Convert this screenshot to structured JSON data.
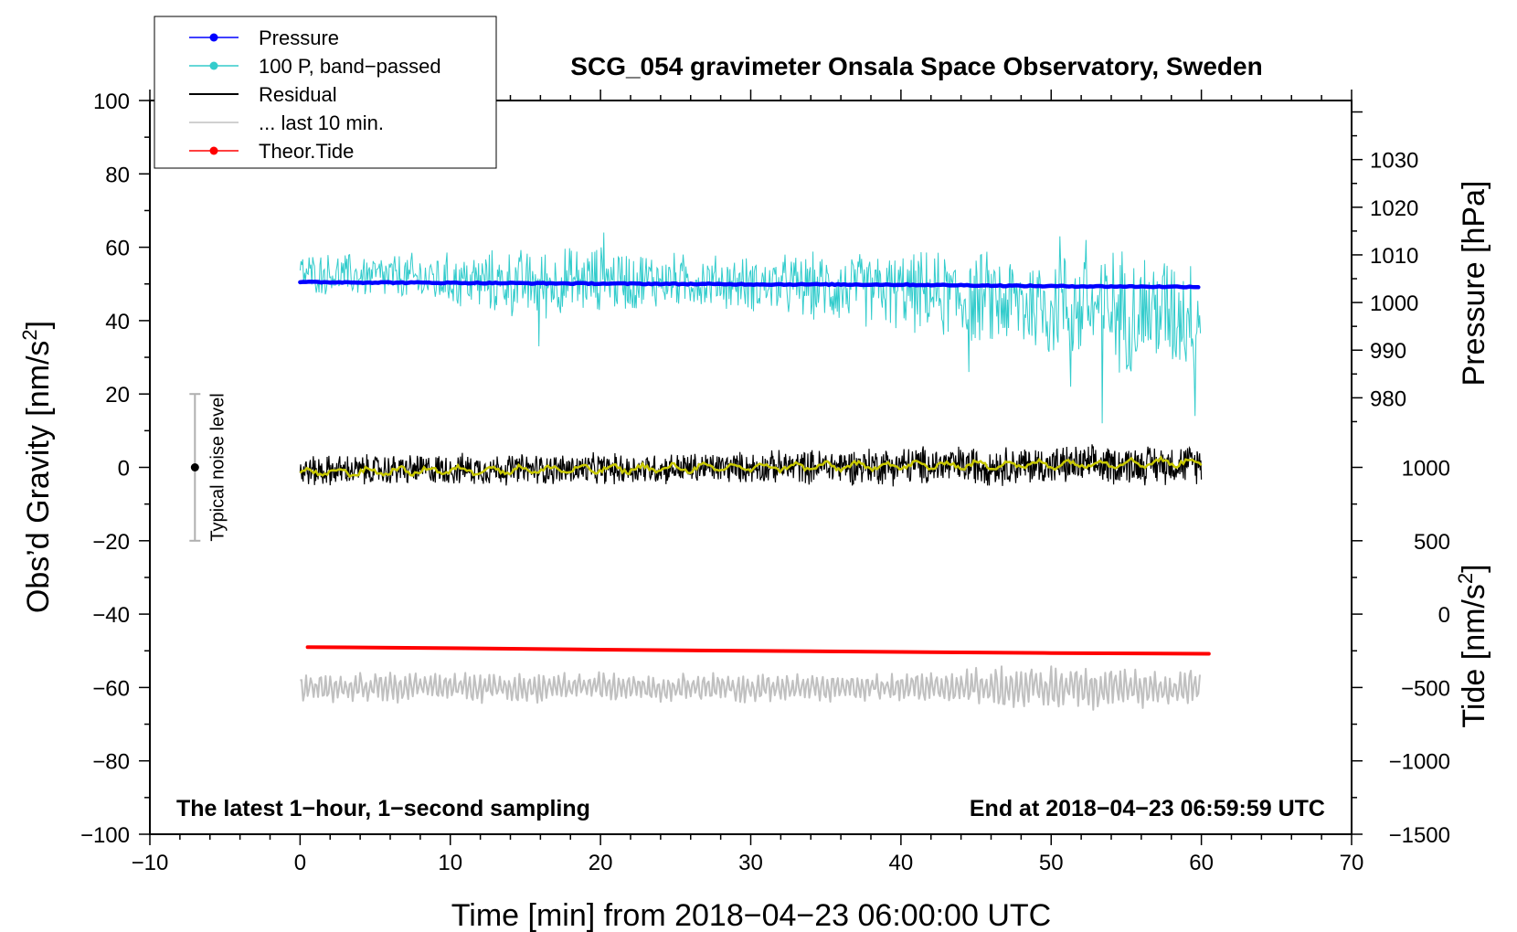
{
  "chart_data": {
    "type": "line",
    "title": "SCG_054 gravimeter Onsala Space Observatory, Sweden",
    "xlabel": "Time [min] from 2018−04−23 06:00:00 UTC",
    "ylabel": "Obs’d Gravity [nm/s²]",
    "ylabel_parts": {
      "base": "Obs’d Gravity [nm/s",
      "sup": "2",
      "end": "]"
    },
    "xlim": [
      -10,
      70
    ],
    "ylim": [
      -100,
      100
    ],
    "x_ticks": [
      -10,
      0,
      10,
      20,
      30,
      40,
      50,
      60,
      70
    ],
    "x_tick_labels": [
      "−10",
      "0",
      "10",
      "20",
      "30",
      "40",
      "50",
      "60",
      "70"
    ],
    "y_ticks": [
      -100,
      -80,
      -60,
      -40,
      -20,
      0,
      20,
      40,
      60,
      80,
      100
    ],
    "y_tick_labels": [
      "−100",
      "−80",
      "−60",
      "−40",
      "−20",
      "0",
      "20",
      "40",
      "60",
      "80",
      "100"
    ],
    "right_axis_pressure": {
      "label": "Pressure [hPa]",
      "ticks": [
        980,
        990,
        1000,
        1010,
        1020,
        1030
      ],
      "tick_labels": [
        "980",
        "990",
        "1000",
        "1010",
        "1020",
        "1030"
      ],
      "mapping": {
        "hPa_at_gravity_zero": 965.4,
        "hPa_per_gravity_unit": 0.77
      }
    },
    "right_axis_tide": {
      "label": "Tide [nm/s²]",
      "label_parts": {
        "base": "Tide [nm/s",
        "sup": "2",
        "end": "]"
      },
      "ticks": [
        -1500,
        -1000,
        -500,
        0,
        500,
        1000
      ],
      "tick_labels": [
        "−1500",
        "−1000",
        "−500",
        "0",
        "500",
        "1000"
      ],
      "mapping": {
        "tide_at_gravity_minus_100": -1500,
        "tide_per_gravity_unit": 25
      }
    },
    "legend": [
      {
        "label": "Pressure",
        "color": "#0000ff",
        "marker": true
      },
      {
        "label": "100 P, band−passed",
        "color": "#33cccc",
        "marker": true
      },
      {
        "label": "Residual",
        "color": "#000000",
        "marker": false
      },
      {
        "label": "... last 10 min.",
        "color": "#c0c0c0",
        "marker": false
      },
      {
        "label": "Theor.Tide",
        "color": "#ff0000",
        "marker": true
      }
    ],
    "legend_position": "top-left",
    "series": [
      {
        "name": "Pressure",
        "color": "#0000ff",
        "x": [
          0,
          10,
          20,
          30,
          40,
          50,
          60
        ],
        "values": [
          50.5,
          50.3,
          50.1,
          49.9,
          49.8,
          49.4,
          49.2
        ]
      },
      {
        "name": "100 P, band−passed",
        "color": "#33cccc",
        "x": [
          0,
          5,
          10,
          15,
          20,
          25,
          30,
          35,
          40,
          45,
          50,
          55,
          60
        ],
        "values": [
          53,
          52,
          51,
          50,
          51,
          51,
          50,
          49,
          48,
          46,
          44,
          43,
          42
        ],
        "spread": [
          5,
          6,
          7,
          9,
          9,
          7,
          7,
          9,
          10,
          12,
          14,
          16,
          15
        ],
        "extremes": [
          {
            "x": 20.2,
            "y": 64
          },
          {
            "x": 15.9,
            "y": 33
          },
          {
            "x": 44.5,
            "y": 26
          },
          {
            "x": 53.4,
            "y": 12
          },
          {
            "x": 51.3,
            "y": 22
          },
          {
            "x": 59.6,
            "y": 14
          },
          {
            "x": 50.6,
            "y": 63
          },
          {
            "x": 52.3,
            "y": 62
          }
        ]
      },
      {
        "name": "Residual",
        "color": "#000000",
        "x": [
          0,
          10,
          20,
          30,
          40,
          50,
          60
        ],
        "values": [
          -1,
          -0.5,
          -0.5,
          0,
          0.5,
          0.5,
          1
        ],
        "spread": [
          4,
          4,
          4,
          4,
          5,
          5,
          5
        ]
      },
      {
        "name": "Residual smoothed",
        "color": "#c8c800",
        "x": [
          0,
          10,
          20,
          30,
          40,
          50,
          60
        ],
        "values": [
          -1.5,
          -0.8,
          -0.5,
          0,
          0.5,
          0.8,
          1.5
        ]
      },
      {
        "name": "... last 10 min.",
        "color": "#c0c0c0",
        "x": [
          0,
          10,
          20,
          30,
          40,
          50,
          60
        ],
        "values": [
          -60,
          -60,
          -60,
          -60,
          -60,
          -60,
          -60
        ],
        "spread": [
          4,
          4,
          4,
          4,
          4,
          6,
          5
        ]
      },
      {
        "name": "Theor.Tide",
        "color": "#ff0000",
        "x": [
          0.5,
          10,
          20,
          30,
          40,
          50,
          60.5
        ],
        "values": [
          -49,
          -49.3,
          -49.7,
          -50,
          -50.3,
          -50.6,
          -50.8
        ]
      }
    ],
    "noise_bar": {
      "x": -7,
      "y": 0,
      "low": -20,
      "high": 20,
      "label": "Typical noise level"
    },
    "annotations": {
      "bottom_left": "The latest 1−hour, 1−second sampling",
      "bottom_right": "End at 2018−04−23 06:59:59 UTC"
    },
    "grid": false
  }
}
